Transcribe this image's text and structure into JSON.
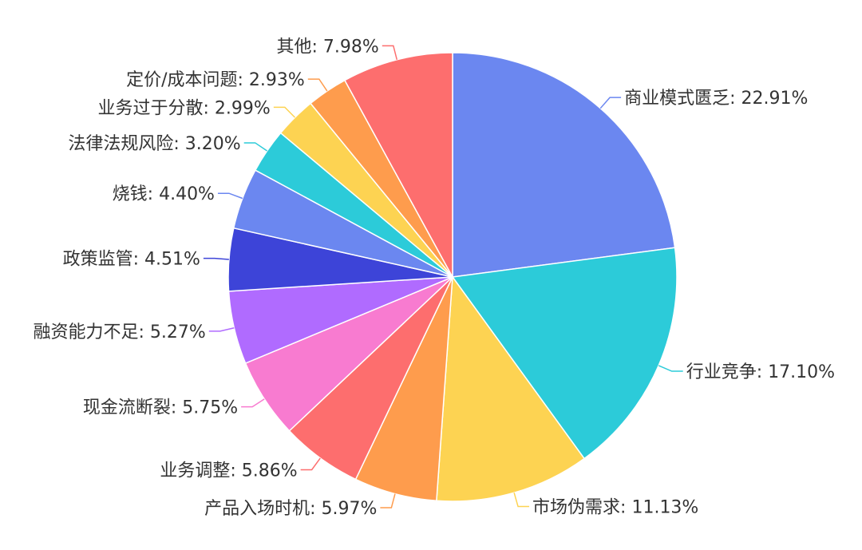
{
  "chart_data": {
    "type": "pie",
    "title": "",
    "legend": "none",
    "label_separator": ": ",
    "slices": [
      {
        "label": "商业模式匮乏",
        "value": 22.91,
        "value_text": "22.91%",
        "color": "#6b87f0"
      },
      {
        "label": "行业竞争",
        "value": 17.1,
        "value_text": "17.10%",
        "color": "#2ccbd9"
      },
      {
        "label": "市场伪需求",
        "value": 11.13,
        "value_text": "11.13%",
        "color": "#fdd352"
      },
      {
        "label": "产品入场时机",
        "value": 5.97,
        "value_text": "5.97%",
        "color": "#fe9c4d"
      },
      {
        "label": "业务调整",
        "value": 5.86,
        "value_text": "5.86%",
        "color": "#fd6e6e"
      },
      {
        "label": "现金流断裂",
        "value": 5.75,
        "value_text": "5.75%",
        "color": "#f87bd0"
      },
      {
        "label": "融资能力不足",
        "value": 5.27,
        "value_text": "5.27%",
        "color": "#b06bff"
      },
      {
        "label": "政策监管",
        "value": 4.51,
        "value_text": "4.51%",
        "color": "#3d44d8"
      },
      {
        "label": "烧钱",
        "value": 4.4,
        "value_text": "4.40%",
        "color": "#6b87f0"
      },
      {
        "label": "法律法规风险",
        "value": 3.2,
        "value_text": "3.20%",
        "color": "#2ccbd9"
      },
      {
        "label": "业务过于分散",
        "value": 2.99,
        "value_text": "2.99%",
        "color": "#fdd352"
      },
      {
        "label": "定价/成本问题",
        "value": 2.93,
        "value_text": "2.93%",
        "color": "#fe9c4d"
      },
      {
        "label": "其他",
        "value": 7.98,
        "value_text": "7.98%",
        "color": "#fd6e6e"
      }
    ]
  }
}
